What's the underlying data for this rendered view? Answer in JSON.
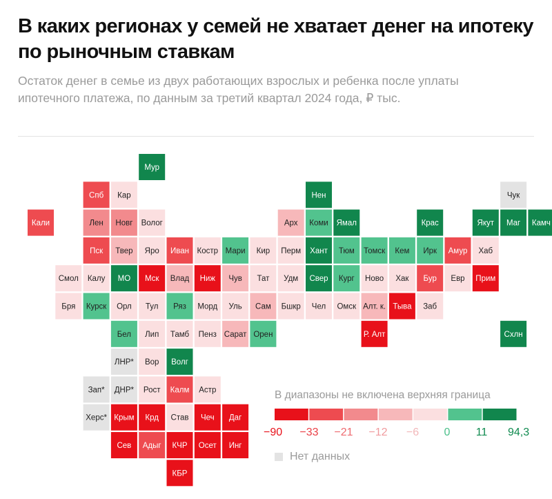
{
  "header": {
    "title": "В каких регионах у семей не хватает денег на ипотеку по рыночным ставкам",
    "subtitle": "Остаток денег в семье из двух работающих взрослых и ребенка после уплаты ипотечного платежа, по данным за третий квартал 2024 года, ₽ тыс."
  },
  "legend": {
    "title": "В диапазоны не включена верхняя граница",
    "no_data_label": "Нет данных",
    "ticks": [
      "−90",
      "−33",
      "−21",
      "−12",
      "−6",
      "0",
      "11",
      "94,3"
    ],
    "tick_colors": [
      "#e8111a",
      "#ea3e45",
      "#ee6a6f",
      "#f09a9d",
      "#f2b7b9",
      "#4cc08b",
      "#0f8a4f",
      "#0f8a4f"
    ]
  },
  "chart_data": {
    "type": "heatmap",
    "title": "В каких регионах у семей не хватает денег на ипотеку по рыночным ставкам",
    "subtitle": "Остаток денег в семье из двух работающих взрослых и ребенка после уплаты ипотечного платежа, по данным за третий квартал 2024 года, ₽ тыс.",
    "bins": [
      {
        "range": [
          -90,
          -33
        ],
        "color": "#e8111a"
      },
      {
        "range": [
          -33,
          -21
        ],
        "color": "#ee4b50"
      },
      {
        "range": [
          -21,
          -12
        ],
        "color": "#f28a8d"
      },
      {
        "range": [
          -12,
          -6
        ],
        "color": "#f7b8ba"
      },
      {
        "range": [
          -6,
          0
        ],
        "color": "#fbdfe0"
      },
      {
        "range": [
          0,
          11
        ],
        "color": "#52c38e"
      },
      {
        "range": [
          11,
          94.3
        ],
        "color": "#11864d"
      }
    ],
    "no_data_color": "#e3e3e3",
    "bin_codes": {
      "0": 0,
      "1": 1,
      "2": 2,
      "3": 3,
      "4": 4,
      "5": 5,
      "6": 6,
      "n": "no data"
    },
    "grid_rows": [
      "..............",
      "....:...........",
      ".....................",
      "......................",
      "......................"
    ],
    "regions": [
      {
        "name": "Мур",
        "col": 4,
        "row": 0,
        "bin": 6
      },
      {
        "name": "Спб",
        "col": 2,
        "row": 1,
        "bin": 1
      },
      {
        "name": "Кар",
        "col": 3,
        "row": 1,
        "bin": 4
      },
      {
        "name": "Нен",
        "col": 10,
        "row": 1,
        "bin": 6
      },
      {
        "name": "Чук",
        "col": 17,
        "row": 1,
        "bin": "n"
      },
      {
        "name": "Кали",
        "col": 0,
        "row": 2,
        "bin": 1
      },
      {
        "name": "Лен",
        "col": 2,
        "row": 2,
        "bin": 2
      },
      {
        "name": "Новг",
        "col": 3,
        "row": 2,
        "bin": 2
      },
      {
        "name": "Волог",
        "col": 4,
        "row": 2,
        "bin": 4
      },
      {
        "name": "Арх",
        "col": 9,
        "row": 2,
        "bin": 3
      },
      {
        "name": "Коми",
        "col": 10,
        "row": 2,
        "bin": 5
      },
      {
        "name": "Ямал",
        "col": 11,
        "row": 2,
        "bin": 6
      },
      {
        "name": "Крас",
        "col": 14,
        "row": 2,
        "bin": 6
      },
      {
        "name": "Якут",
        "col": 16,
        "row": 2,
        "bin": 6
      },
      {
        "name": "Маг",
        "col": 17,
        "row": 2,
        "bin": 6
      },
      {
        "name": "Камч",
        "col": 18,
        "row": 2,
        "bin": 6
      },
      {
        "name": "Пск",
        "col": 2,
        "row": 3,
        "bin": 1
      },
      {
        "name": "Твер",
        "col": 3,
        "row": 3,
        "bin": 3
      },
      {
        "name": "Яро",
        "col": 4,
        "row": 3,
        "bin": 4
      },
      {
        "name": "Иван",
        "col": 5,
        "row": 3,
        "bin": 1
      },
      {
        "name": "Костр",
        "col": 6,
        "row": 3,
        "bin": 4
      },
      {
        "name": "Мари",
        "col": 7,
        "row": 3,
        "bin": 5
      },
      {
        "name": "Кир",
        "col": 8,
        "row": 3,
        "bin": 4
      },
      {
        "name": "Перм",
        "col": 9,
        "row": 3,
        "bin": 4
      },
      {
        "name": "Хант",
        "col": 10,
        "row": 3,
        "bin": 6
      },
      {
        "name": "Тюм",
        "col": 11,
        "row": 3,
        "bin": 5
      },
      {
        "name": "Томск",
        "col": 12,
        "row": 3,
        "bin": 5
      },
      {
        "name": "Кем",
        "col": 13,
        "row": 3,
        "bin": 5
      },
      {
        "name": "Ирк",
        "col": 14,
        "row": 3,
        "bin": 5
      },
      {
        "name": "Амур",
        "col": 15,
        "row": 3,
        "bin": 1
      },
      {
        "name": "Хаб",
        "col": 16,
        "row": 3,
        "bin": 4
      },
      {
        "name": "Смол",
        "col": 1,
        "row": 4,
        "bin": 4
      },
      {
        "name": "Калу",
        "col": 2,
        "row": 4,
        "bin": 4
      },
      {
        "name": "МО",
        "col": 3,
        "row": 4,
        "bin": 6
      },
      {
        "name": "Мск",
        "col": 4,
        "row": 4,
        "bin": 0
      },
      {
        "name": "Влад",
        "col": 5,
        "row": 4,
        "bin": 3
      },
      {
        "name": "Ниж",
        "col": 6,
        "row": 4,
        "bin": 0
      },
      {
        "name": "Чув",
        "col": 7,
        "row": 4,
        "bin": 3
      },
      {
        "name": "Тат",
        "col": 8,
        "row": 4,
        "bin": 4
      },
      {
        "name": "Удм",
        "col": 9,
        "row": 4,
        "bin": 4
      },
      {
        "name": "Свер",
        "col": 10,
        "row": 4,
        "bin": 6
      },
      {
        "name": "Кург",
        "col": 11,
        "row": 4,
        "bin": 5
      },
      {
        "name": "Ново",
        "col": 12,
        "row": 4,
        "bin": 4
      },
      {
        "name": "Хак",
        "col": 13,
        "row": 4,
        "bin": 4
      },
      {
        "name": "Бур",
        "col": 14,
        "row": 4,
        "bin": 1
      },
      {
        "name": "Евр",
        "col": 15,
        "row": 4,
        "bin": 4
      },
      {
        "name": "Прим",
        "col": 16,
        "row": 4,
        "bin": 0
      },
      {
        "name": "Бря",
        "col": 1,
        "row": 5,
        "bin": 4
      },
      {
        "name": "Курск",
        "col": 2,
        "row": 5,
        "bin": 5
      },
      {
        "name": "Орл",
        "col": 3,
        "row": 5,
        "bin": 4
      },
      {
        "name": "Тул",
        "col": 4,
        "row": 5,
        "bin": 4
      },
      {
        "name": "Ряз",
        "col": 5,
        "row": 5,
        "bin": 5
      },
      {
        "name": "Морд",
        "col": 6,
        "row": 5,
        "bin": 4
      },
      {
        "name": "Уль",
        "col": 7,
        "row": 5,
        "bin": 4
      },
      {
        "name": "Сам",
        "col": 8,
        "row": 5,
        "bin": 3
      },
      {
        "name": "Бшкр",
        "col": 9,
        "row": 5,
        "bin": 4
      },
      {
        "name": "Чел",
        "col": 10,
        "row": 5,
        "bin": 4
      },
      {
        "name": "Омск",
        "col": 11,
        "row": 5,
        "bin": 4
      },
      {
        "name": "Алт. к.",
        "col": 12,
        "row": 5,
        "bin": 3
      },
      {
        "name": "Тыва",
        "col": 13,
        "row": 5,
        "bin": 0
      },
      {
        "name": "Заб",
        "col": 14,
        "row": 5,
        "bin": 4
      },
      {
        "name": "Бел",
        "col": 3,
        "row": 6,
        "bin": 5
      },
      {
        "name": "Лип",
        "col": 4,
        "row": 6,
        "bin": 4
      },
      {
        "name": "Тамб",
        "col": 5,
        "row": 6,
        "bin": 4
      },
      {
        "name": "Пенз",
        "col": 6,
        "row": 6,
        "bin": 4
      },
      {
        "name": "Сарат",
        "col": 7,
        "row": 6,
        "bin": 3
      },
      {
        "name": "Орен",
        "col": 8,
        "row": 6,
        "bin": 5
      },
      {
        "name": "Р. Алт",
        "col": 12,
        "row": 6,
        "bin": 0
      },
      {
        "name": "Схлн",
        "col": 17,
        "row": 6,
        "bin": 6
      },
      {
        "name": "ЛНР*",
        "col": 3,
        "row": 7,
        "bin": "n"
      },
      {
        "name": "Вор",
        "col": 4,
        "row": 7,
        "bin": 4
      },
      {
        "name": "Волг",
        "col": 5,
        "row": 7,
        "bin": 6
      },
      {
        "name": "Зап*",
        "col": 2,
        "row": 8,
        "bin": "n"
      },
      {
        "name": "ДНР*",
        "col": 3,
        "row": 8,
        "bin": "n"
      },
      {
        "name": "Рост",
        "col": 4,
        "row": 8,
        "bin": 4
      },
      {
        "name": "Калм",
        "col": 5,
        "row": 8,
        "bin": 1
      },
      {
        "name": "Астр",
        "col": 6,
        "row": 8,
        "bin": 4
      },
      {
        "name": "Херс*",
        "col": 2,
        "row": 9,
        "bin": "n"
      },
      {
        "name": "Крым",
        "col": 3,
        "row": 9,
        "bin": 0
      },
      {
        "name": "Крд",
        "col": 4,
        "row": 9,
        "bin": 0
      },
      {
        "name": "Став",
        "col": 5,
        "row": 9,
        "bin": 4
      },
      {
        "name": "Чеч",
        "col": 6,
        "row": 9,
        "bin": 0
      },
      {
        "name": "Даг",
        "col": 7,
        "row": 9,
        "bin": 0
      },
      {
        "name": "Сев",
        "col": 3,
        "row": 10,
        "bin": 0
      },
      {
        "name": "Адыг",
        "col": 4,
        "row": 10,
        "bin": 1
      },
      {
        "name": "КЧР",
        "col": 5,
        "row": 10,
        "bin": 0
      },
      {
        "name": "Осет",
        "col": 6,
        "row": 10,
        "bin": 0
      },
      {
        "name": "Инг",
        "col": 7,
        "row": 10,
        "bin": 0
      },
      {
        "name": "КБР",
        "col": 5,
        "row": 11,
        "bin": 0
      }
    ]
  }
}
